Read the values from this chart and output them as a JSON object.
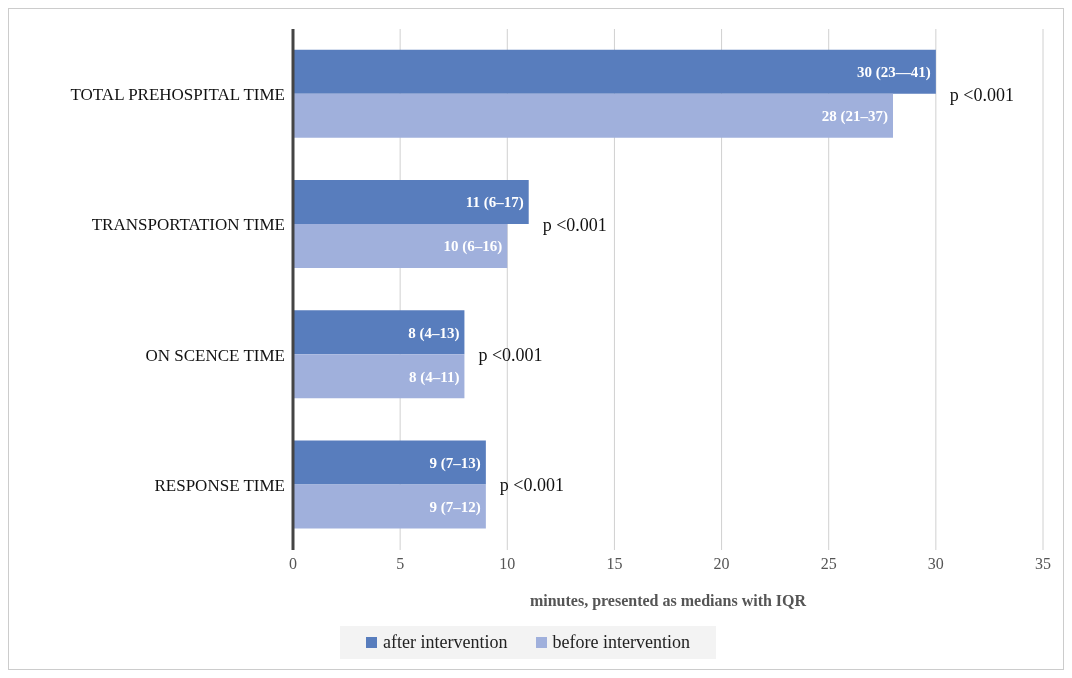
{
  "chart_data": {
    "type": "bar",
    "orientation": "horizontal",
    "xlabel": "minutes, presented as medians with IQR",
    "categories": [
      "TOTAL PREHOSPITAL TIME",
      "TRANSPORTATION TIME",
      "ON SCENCE TIME",
      "RESPONSE TIME"
    ],
    "series": [
      {
        "name": "after intervention",
        "color": "#587dbd",
        "values": [
          30,
          11,
          8,
          9
        ],
        "value_labels": [
          "30 (23—41)",
          "11 (6–17)",
          "8 (4–13)",
          "9 (7–13)"
        ]
      },
      {
        "name": "before intervention",
        "color": "#a0b0dc",
        "values": [
          28,
          10,
          8,
          9
        ],
        "value_labels": [
          "28 (21–37)",
          "10 (6–16)",
          "8 (4–11)",
          "9 (7–12)"
        ]
      }
    ],
    "xlim": [
      0,
      35
    ],
    "xticks": [
      0,
      5,
      10,
      15,
      20,
      25,
      30,
      35
    ],
    "grid": "x",
    "legend": "bottom",
    "annotations": [
      {
        "text": "p <0.001",
        "x": 30,
        "y": "TOTAL PREHOSPITAL TIME"
      },
      {
        "text": "p <0.001",
        "x": 11,
        "y": "TRANSPORTATION TIME"
      },
      {
        "text": "p <0.001",
        "x": 8,
        "y": "ON SCENCE TIME"
      },
      {
        "text": "p <0.001",
        "x": 9,
        "y": "RESPONSE TIME"
      }
    ]
  }
}
